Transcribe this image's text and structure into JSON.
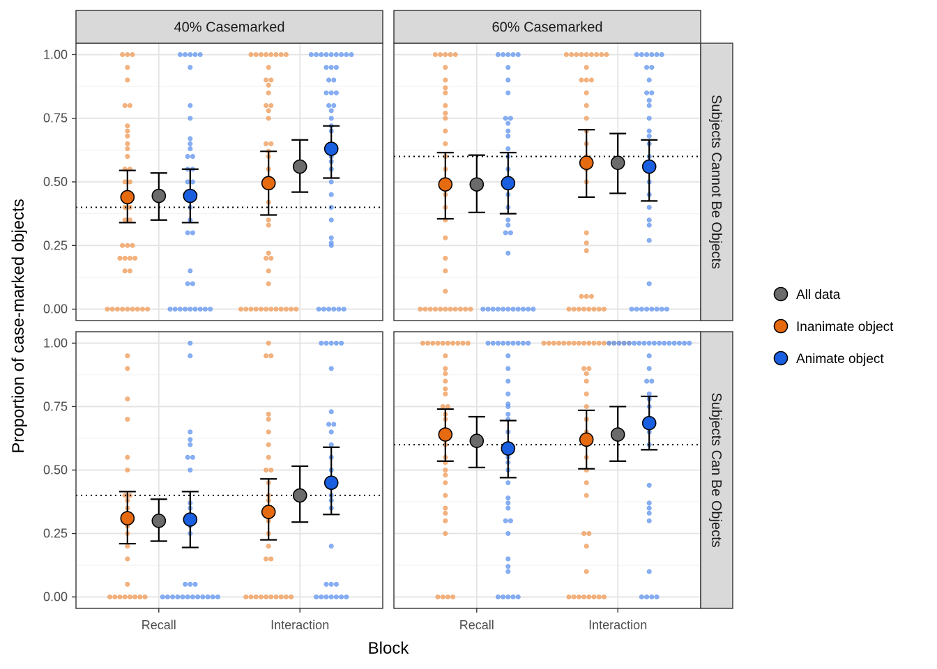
{
  "chart_data": {
    "type": "scatter",
    "description": "Faceted dot plot with jittered per-participant proportions and mean +/- CI points",
    "xlabel": "Block",
    "ylabel": "Proportion of case-marked objects",
    "x_categories": [
      "Recall",
      "Interaction"
    ],
    "y_ticks": [
      "0.00",
      "0.25",
      "0.50",
      "0.75",
      "1.00"
    ],
    "ylim": [
      0,
      1
    ],
    "grid": true,
    "legend_position": "right",
    "column_facets": [
      "40% Casemarked",
      "60% Casemarked"
    ],
    "row_facets": [
      "Subjects Cannot Be Objects",
      "Subjects Can Be Objects"
    ],
    "colors": {
      "all": "#6b6b6b",
      "inanimate": "#e66a10",
      "animate": "#1a5fe0",
      "inanimate_dot": "#f0a060",
      "animate_dot": "#6a9bf0"
    },
    "legend": [
      {
        "key": "all",
        "label": "All data"
      },
      {
        "key": "inanimate",
        "label": "Inanimate object"
      },
      {
        "key": "animate",
        "label": "Animate object"
      }
    ],
    "panels": [
      {
        "col": 0,
        "row": 0,
        "reference_line": 0.4,
        "summary": {
          "Recall": {
            "inanimate": {
              "mean": 0.44,
              "lo": 0.34,
              "hi": 0.545
            },
            "all": {
              "mean": 0.445,
              "lo": 0.35,
              "hi": 0.535
            },
            "animate": {
              "mean": 0.445,
              "lo": 0.34,
              "hi": 0.55
            }
          },
          "Interaction": {
            "inanimate": {
              "mean": 0.495,
              "lo": 0.37,
              "hi": 0.62
            },
            "all": {
              "mean": 0.56,
              "lo": 0.46,
              "hi": 0.665
            },
            "animate": {
              "mean": 0.63,
              "lo": 0.515,
              "hi": 0.72
            }
          }
        },
        "points": {
          "Recall": {
            "inanimate": [
              0,
              0,
              0,
              0,
              0,
              0,
              0,
              0,
              0,
              0.15,
              0.15,
              0.2,
              0.2,
              0.2,
              0.2,
              0.25,
              0.25,
              0.25,
              0.35,
              0.35,
              0.4,
              0.4,
              0.45,
              0.5,
              0.5,
              0.55,
              0.55,
              0.6,
              0.63,
              0.65,
              0.68,
              0.7,
              0.72,
              0.8,
              0.8,
              0.9,
              0.95,
              1,
              1,
              1
            ],
            "animate": [
              0,
              0,
              0,
              0,
              0,
              0,
              0,
              0,
              0,
              0.1,
              0.1,
              0.15,
              0.3,
              0.3,
              0.35,
              0.4,
              0.45,
              0.45,
              0.45,
              0.5,
              0.5,
              0.55,
              0.55,
              0.6,
              0.6,
              0.63,
              0.65,
              0.67,
              0.75,
              0.8,
              0.95,
              1,
              1,
              1,
              1,
              1
            ]
          },
          "Interaction": {
            "inanimate": [
              0,
              0,
              0,
              0,
              0,
              0,
              0,
              0,
              0,
              0,
              0,
              0,
              0.1,
              0.15,
              0.2,
              0.2,
              0.22,
              0.33,
              0.35,
              0.42,
              0.5,
              0.5,
              0.55,
              0.6,
              0.62,
              0.65,
              0.65,
              0.75,
              0.78,
              0.8,
              0.8,
              0.85,
              0.88,
              0.9,
              0.9,
              0.95,
              1,
              1,
              1,
              1,
              1,
              1,
              1,
              1
            ],
            "animate": [
              0,
              0,
              0,
              0,
              0,
              0,
              0.25,
              0.26,
              0.28,
              0.35,
              0.4,
              0.45,
              0.5,
              0.55,
              0.58,
              0.6,
              0.62,
              0.65,
              0.7,
              0.72,
              0.75,
              0.78,
              0.8,
              0.8,
              0.85,
              0.85,
              0.85,
              0.9,
              0.9,
              0.95,
              0.95,
              0.95,
              1,
              1,
              1,
              1,
              1,
              1,
              1,
              1,
              1
            ]
          }
        }
      },
      {
        "col": 1,
        "row": 0,
        "reference_line": 0.6,
        "summary": {
          "Recall": {
            "inanimate": {
              "mean": 0.49,
              "lo": 0.355,
              "hi": 0.615
            },
            "all": {
              "mean": 0.49,
              "lo": 0.38,
              "hi": 0.605
            },
            "animate": {
              "mean": 0.495,
              "lo": 0.375,
              "hi": 0.615
            }
          },
          "Interaction": {
            "inanimate": {
              "mean": 0.575,
              "lo": 0.44,
              "hi": 0.705
            },
            "all": {
              "mean": 0.575,
              "lo": 0.455,
              "hi": 0.69
            },
            "animate": {
              "mean": 0.56,
              "lo": 0.425,
              "hi": 0.665
            }
          }
        },
        "points": {
          "Recall": {
            "inanimate": [
              0,
              0,
              0,
              0,
              0,
              0,
              0,
              0,
              0,
              0,
              0,
              0.07,
              0.15,
              0.2,
              0.28,
              0.35,
              0.4,
              0.45,
              0.5,
              0.55,
              0.6,
              0.65,
              0.7,
              0.75,
              0.77,
              0.8,
              0.85,
              0.87,
              0.9,
              0.95,
              1,
              1,
              1,
              1,
              1
            ],
            "animate": [
              0,
              0,
              0,
              0,
              0,
              0,
              0,
              0,
              0,
              0,
              0,
              0.22,
              0.3,
              0.3,
              0.33,
              0.35,
              0.4,
              0.45,
              0.5,
              0.55,
              0.6,
              0.63,
              0.68,
              0.7,
              0.73,
              0.75,
              0.75,
              0.85,
              0.9,
              0.95,
              1,
              1,
              1,
              1,
              1
            ]
          },
          "Interaction": {
            "inanimate": [
              0,
              0,
              0,
              0,
              0,
              0,
              0,
              0,
              0.05,
              0.05,
              0.05,
              0.23,
              0.26,
              0.3,
              0.5,
              0.55,
              0.6,
              0.65,
              0.7,
              0.75,
              0.8,
              0.85,
              0.9,
              0.9,
              0.9,
              0.95,
              1,
              1,
              1,
              1,
              1,
              1,
              1,
              1,
              1
            ],
            "animate": [
              0,
              0,
              0,
              0,
              0,
              0,
              0,
              0,
              0.1,
              0.27,
              0.33,
              0.35,
              0.4,
              0.45,
              0.5,
              0.6,
              0.65,
              0.68,
              0.7,
              0.75,
              0.8,
              0.82,
              0.85,
              0.85,
              0.9,
              0.95,
              0.95,
              1,
              1,
              1,
              1,
              1,
              1
            ]
          }
        }
      },
      {
        "col": 0,
        "row": 1,
        "reference_line": 0.4,
        "summary": {
          "Recall": {
            "inanimate": {
              "mean": 0.31,
              "lo": 0.21,
              "hi": 0.415
            },
            "all": {
              "mean": 0.3,
              "lo": 0.22,
              "hi": 0.385
            },
            "animate": {
              "mean": 0.305,
              "lo": 0.195,
              "hi": 0.415
            }
          },
          "Interaction": {
            "inanimate": {
              "mean": 0.335,
              "lo": 0.225,
              "hi": 0.465
            },
            "all": {
              "mean": 0.4,
              "lo": 0.295,
              "hi": 0.515
            },
            "animate": {
              "mean": 0.45,
              "lo": 0.325,
              "hi": 0.59
            }
          }
        },
        "points": {
          "Recall": {
            "inanimate": [
              0,
              0,
              0,
              0,
              0,
              0,
              0,
              0,
              0.05,
              0.15,
              0.2,
              0.25,
              0.28,
              0.3,
              0.33,
              0.35,
              0.38,
              0.4,
              0.4,
              0.5,
              0.55,
              0.7,
              0.78,
              0.9,
              0.95
            ],
            "animate": [
              0,
              0,
              0,
              0,
              0,
              0,
              0,
              0,
              0,
              0,
              0,
              0,
              0.05,
              0.05,
              0.05,
              0.25,
              0.28,
              0.3,
              0.32,
              0.35,
              0.37,
              0.5,
              0.55,
              0.55,
              0.6,
              0.62,
              0.65,
              0.95,
              1
            ]
          },
          "Interaction": {
            "inanimate": [
              0,
              0,
              0,
              0,
              0,
              0,
              0,
              0,
              0,
              0,
              0.15,
              0.15,
              0.2,
              0.25,
              0.3,
              0.33,
              0.38,
              0.4,
              0.45,
              0.5,
              0.5,
              0.55,
              0.6,
              0.65,
              0.7,
              0.72,
              0.95,
              0.95,
              1
            ],
            "animate": [
              0,
              0,
              0,
              0,
              0,
              0,
              0,
              0.05,
              0.05,
              0.05,
              0.2,
              0.35,
              0.38,
              0.4,
              0.45,
              0.5,
              0.55,
              0.6,
              0.65,
              0.68,
              0.68,
              0.73,
              0.9,
              1,
              1,
              1,
              1,
              1
            ]
          }
        }
      },
      {
        "col": 1,
        "row": 1,
        "reference_line": 0.6,
        "summary": {
          "Recall": {
            "inanimate": {
              "mean": 0.64,
              "lo": 0.535,
              "hi": 0.74
            },
            "all": {
              "mean": 0.615,
              "lo": 0.51,
              "hi": 0.71
            },
            "animate": {
              "mean": 0.585,
              "lo": 0.47,
              "hi": 0.695
            }
          },
          "Interaction": {
            "inanimate": {
              "mean": 0.62,
              "lo": 0.505,
              "hi": 0.735
            },
            "all": {
              "mean": 0.64,
              "lo": 0.535,
              "hi": 0.75
            },
            "animate": {
              "mean": 0.685,
              "lo": 0.58,
              "hi": 0.79
            }
          }
        },
        "points": {
          "Recall": {
            "inanimate": [
              0,
              0,
              0,
              0,
              0.25,
              0.3,
              0.33,
              0.35,
              0.4,
              0.45,
              0.48,
              0.5,
              0.53,
              0.55,
              0.6,
              0.63,
              0.65,
              0.7,
              0.72,
              0.75,
              0.75,
              0.8,
              0.82,
              0.85,
              0.88,
              0.9,
              0.95,
              1,
              1,
              1,
              1,
              1,
              1,
              1,
              1,
              1,
              1
            ],
            "animate": [
              0,
              0,
              0,
              0,
              0,
              0.1,
              0.12,
              0.15,
              0.25,
              0.3,
              0.3,
              0.35,
              0.37,
              0.39,
              0.45,
              0.5,
              0.53,
              0.55,
              0.6,
              0.65,
              0.7,
              0.72,
              0.75,
              0.76,
              0.8,
              0.85,
              0.9,
              0.95,
              1,
              1,
              1,
              1,
              1,
              1,
              1,
              1,
              1
            ]
          },
          "Interaction": {
            "inanimate": [
              0,
              0,
              0,
              0,
              0,
              0,
              0,
              0,
              0.1,
              0.2,
              0.25,
              0.25,
              0.4,
              0.45,
              0.5,
              0.55,
              0.6,
              0.65,
              0.7,
              0.75,
              0.8,
              0.85,
              0.88,
              0.9,
              0.9,
              1,
              1,
              1,
              1,
              1,
              1,
              1,
              1,
              1,
              1,
              1,
              1,
              1,
              1,
              1,
              1,
              1,
              1
            ],
            "animate": [
              0,
              0,
              0,
              0,
              0.1,
              0.3,
              0.33,
              0.35,
              0.37,
              0.44,
              0.6,
              0.65,
              0.7,
              0.75,
              0.78,
              0.8,
              0.85,
              0.85,
              0.9,
              0.95,
              1,
              1,
              1,
              1,
              1,
              1,
              1,
              1,
              1,
              1,
              1,
              1,
              1,
              1,
              1,
              1,
              1
            ]
          }
        }
      }
    ]
  }
}
